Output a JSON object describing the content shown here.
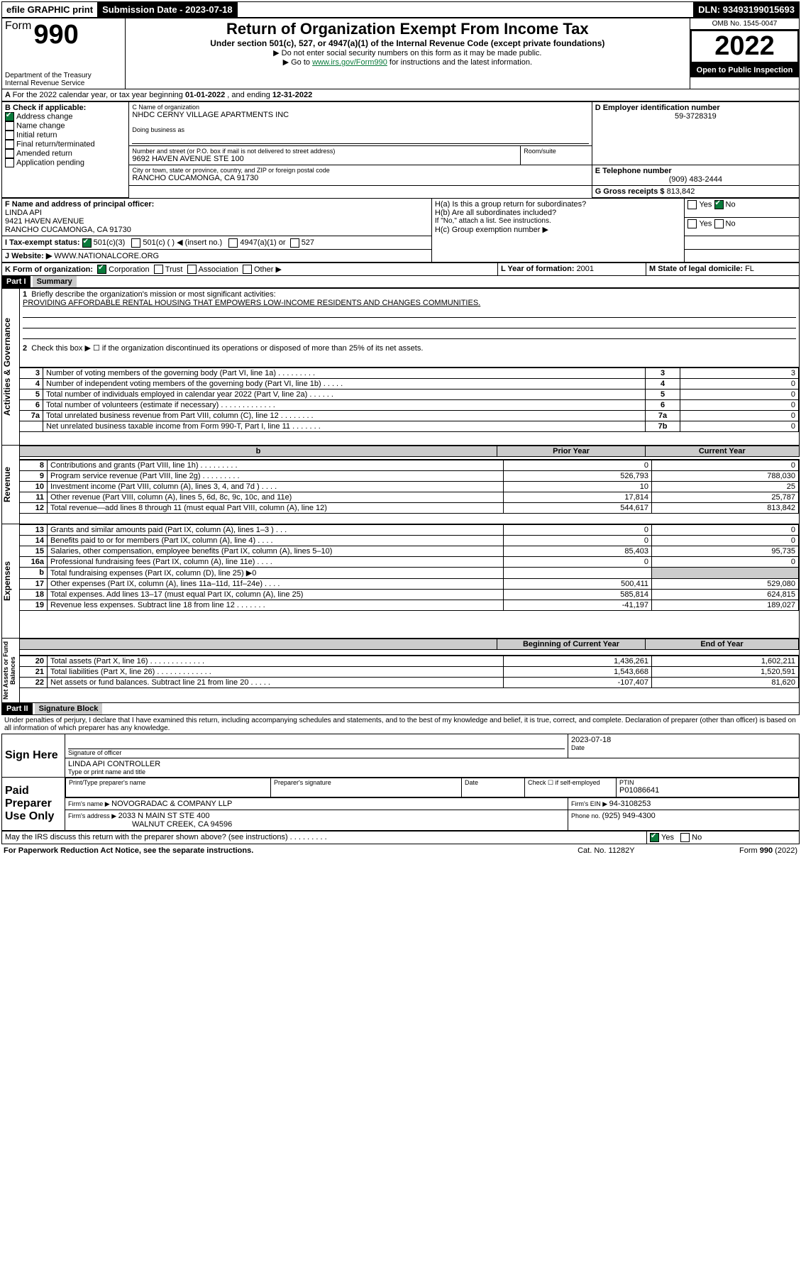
{
  "topbar": {
    "efile": "efile GRAPHIC print",
    "sub_label": "Submission Date - ",
    "sub_date": "2023-07-18",
    "dln_label": "DLN: ",
    "dln": "93493199015693"
  },
  "header": {
    "form_word": "Form",
    "form_num": "990",
    "dept": "Department of the Treasury",
    "irs": "Internal Revenue Service",
    "title": "Return of Organization Exempt From Income Tax",
    "sub1": "Under section 501(c), 527, or 4947(a)(1) of the Internal Revenue Code (except private foundations)",
    "sub2": "▶ Do not enter social security numbers on this form as it may be made public.",
    "sub3_a": "▶ Go to ",
    "sub3_link": "www.irs.gov/Form990",
    "sub3_b": " for instructions and the latest information.",
    "omb": "OMB No. 1545-0047",
    "year": "2022",
    "open": "Open to Public Inspection"
  },
  "A": {
    "text_a": "For the 2022 calendar year, or tax year beginning ",
    "begin": "01-01-2022",
    "mid": " , and ending ",
    "end": "12-31-2022"
  },
  "B": {
    "label": "B Check if applicable:",
    "items": [
      "Address change",
      "Name change",
      "Initial return",
      "Final return/terminated",
      "Amended return",
      "Application pending"
    ],
    "checked": [
      true,
      false,
      false,
      false,
      false,
      false
    ]
  },
  "C": {
    "label": "C Name of organization",
    "name": "NHDC CERNY VILLAGE APARTMENTS INC",
    "dba_label": "Doing business as",
    "addr_label": "Number and street (or P.O. box if mail is not delivered to street address)",
    "room_label": "Room/suite",
    "addr": "9692 HAVEN AVENUE STE 100",
    "city_label": "City or town, state or province, country, and ZIP or foreign postal code",
    "city": "RANCHO CUCAMONGA, CA  91730"
  },
  "D": {
    "label": "D Employer identification number",
    "val": "59-3728319"
  },
  "E": {
    "label": "E Telephone number",
    "val": "(909) 483-2444"
  },
  "G": {
    "label": "G Gross receipts $ ",
    "val": "813,842"
  },
  "F": {
    "label": "F Name and address of principal officer:",
    "name": "LINDA API",
    "addr1": "9421 HAVEN AVENUE",
    "addr2": "RANCHO CUCAMONGA, CA  91730"
  },
  "H": {
    "a": "H(a)  Is this a group return for subordinates?",
    "a_yes": "Yes",
    "a_no": "No",
    "b": "H(b)  Are all subordinates included?",
    "b_yes": "Yes",
    "b_no": "No",
    "b_note": "If \"No,\" attach a list. See instructions.",
    "c": "H(c)  Group exemption number ▶"
  },
  "I": {
    "label": "I   Tax-exempt status:",
    "o1": "501(c)(3)",
    "o2": "501(c) (  ) ◀ (insert no.)",
    "o3": "4947(a)(1) or",
    "o4": "527"
  },
  "J": {
    "label": "J   Website: ▶ ",
    "val": "WWW.NATIONALCORE.ORG"
  },
  "K": {
    "label": "K Form of organization:",
    "o1": "Corporation",
    "o2": "Trust",
    "o3": "Association",
    "o4": "Other ▶"
  },
  "L": {
    "label": "L Year of formation: ",
    "val": "2001"
  },
  "M": {
    "label": "M State of legal domicile: ",
    "val": "FL"
  },
  "part1": {
    "hdr": "Part I",
    "title": "Summary"
  },
  "summary": {
    "q1": "Briefly describe the organization's mission or most significant activities:",
    "q1_ans": "PROVIDING AFFORDABLE RENTAL HOUSING THAT EMPOWERS LOW-INCOME RESIDENTS AND CHANGES COMMUNITIES.",
    "q2": "Check this box ▶ ☐  if the organization discontinued its operations or disposed of more than 25% of its net assets.",
    "rows_ag": [
      {
        "n": "3",
        "t": "Number of voting members of the governing body (Part VI, line 1a)   .    .    .    .    .    .    .    .    .",
        "box": "3",
        "v": "3"
      },
      {
        "n": "4",
        "t": "Number of independent voting members of the governing body (Part VI, line 1b)   .    .    .    .    .",
        "box": "4",
        "v": "0"
      },
      {
        "n": "5",
        "t": "Total number of individuals employed in calendar year 2022 (Part V, line 2a)   .    .    .    .    .    .",
        "box": "5",
        "v": "0"
      },
      {
        "n": "6",
        "t": "Total number of volunteers (estimate if necessary)   .    .    .    .    .    .    .    .    .    .    .    .    .",
        "box": "6",
        "v": "0"
      },
      {
        "n": "7a",
        "t": "Total unrelated business revenue from Part VIII, column (C), line 12   .    .    .    .    .    .    .    .",
        "box": "7a",
        "v": "0"
      },
      {
        "n": "",
        "t": "Net unrelated business taxable income from Form 990-T, Part I, line 11   .    .    .    .    .    .    .",
        "box": "7b",
        "v": "0"
      }
    ],
    "col_prior": "Prior Year",
    "col_curr": "Current Year",
    "rev": [
      {
        "n": "8",
        "t": "Contributions and grants (Part VIII, line 1h)   .    .    .    .    .    .    .    .    .",
        "p": "0",
        "c": "0"
      },
      {
        "n": "9",
        "t": "Program service revenue (Part VIII, line 2g)   .    .    .    .    .    .    .    .    .",
        "p": "526,793",
        "c": "788,030"
      },
      {
        "n": "10",
        "t": "Investment income (Part VIII, column (A), lines 3, 4, and 7d )   .    .    .    .",
        "p": "10",
        "c": "25"
      },
      {
        "n": "11",
        "t": "Other revenue (Part VIII, column (A), lines 5, 6d, 8c, 9c, 10c, and 11e)",
        "p": "17,814",
        "c": "25,787"
      },
      {
        "n": "12",
        "t": "Total revenue—add lines 8 through 11 (must equal Part VIII, column (A), line 12)",
        "p": "544,617",
        "c": "813,842"
      }
    ],
    "exp": [
      {
        "n": "13",
        "t": "Grants and similar amounts paid (Part IX, column (A), lines 1–3 )   .    .    .",
        "p": "0",
        "c": "0"
      },
      {
        "n": "14",
        "t": "Benefits paid to or for members (Part IX, column (A), line 4)   .    .    .    .",
        "p": "0",
        "c": "0"
      },
      {
        "n": "15",
        "t": "Salaries, other compensation, employee benefits (Part IX, column (A), lines 5–10)",
        "p": "85,403",
        "c": "95,735"
      },
      {
        "n": "16a",
        "t": "Professional fundraising fees (Part IX, column (A), line 11e)   .    .    .    .",
        "p": "0",
        "c": "0"
      },
      {
        "n": "b",
        "t": "Total fundraising expenses (Part IX, column (D), line 25) ▶0",
        "p": "",
        "c": ""
      },
      {
        "n": "17",
        "t": "Other expenses (Part IX, column (A), lines 11a–11d, 11f–24e)   .    .    .    .",
        "p": "500,411",
        "c": "529,080"
      },
      {
        "n": "18",
        "t": "Total expenses. Add lines 13–17 (must equal Part IX, column (A), line 25)",
        "p": "585,814",
        "c": "624,815"
      },
      {
        "n": "19",
        "t": "Revenue less expenses. Subtract line 18 from line 12   .    .    .    .    .    .    .",
        "p": "-41,197",
        "c": "189,027"
      }
    ],
    "col_boy": "Beginning of Current Year",
    "col_eoy": "End of Year",
    "na": [
      {
        "n": "20",
        "t": "Total assets (Part X, line 16)   .    .    .    .    .    .    .    .    .    .    .    .    .",
        "p": "1,436,261",
        "c": "1,602,211"
      },
      {
        "n": "21",
        "t": "Total liabilities (Part X, line 26)   .    .    .    .    .    .    .    .    .    .    .    .    .",
        "p": "1,543,668",
        "c": "1,520,591"
      },
      {
        "n": "22",
        "t": "Net assets or fund balances. Subtract line 21 from line 20   .    .    .    .    .",
        "p": "-107,407",
        "c": "81,620"
      }
    ]
  },
  "side_labels": {
    "ag": "Activities & Governance",
    "rev": "Revenue",
    "exp": "Expenses",
    "na": "Net Assets or Fund Balances"
  },
  "part2": {
    "hdr": "Part II",
    "title": "Signature Block"
  },
  "sig": {
    "decl": "Under penalties of perjury, I declare that I have examined this return, including accompanying schedules and statements, and to the best of my knowledge and belief, it is true, correct, and complete. Declaration of preparer (other than officer) is based on all information of which preparer has any knowledge.",
    "sign_here": "Sign Here",
    "off_sig": "Signature of officer",
    "date_label": "Date",
    "date": "2023-07-18",
    "off_name": "LINDA API  CONTROLLER",
    "off_name_label": "Type or print name and title",
    "paid": "Paid Preparer Use Only",
    "prep_name_label": "Print/Type preparer's name",
    "prep_sig_label": "Preparer's signature",
    "check_se": "Check ☐ if self-employed",
    "ptin_label": "PTIN",
    "ptin": "P01086641",
    "firm_name_label": "Firm's name     ▶ ",
    "firm_name": "NOVOGRADAC & COMPANY LLP",
    "firm_ein_label": "Firm's EIN ▶ ",
    "firm_ein": "94-3108253",
    "firm_addr_label": "Firm's address ▶ ",
    "firm_addr1": "2033 N MAIN ST STE 400",
    "firm_addr2": "WALNUT CREEK, CA  94596",
    "phone_label": "Phone no. ",
    "phone": "(925) 949-4300",
    "discuss": "May the IRS discuss this return with the preparer shown above? (see instructions)   .    .    .    .    .    .    .    .    .",
    "yes": "Yes",
    "no": "No"
  },
  "footer": {
    "left": "For Paperwork Reduction Act Notice, see the separate instructions.",
    "mid": "Cat. No. 11282Y",
    "right": "Form 990 (2022)"
  }
}
